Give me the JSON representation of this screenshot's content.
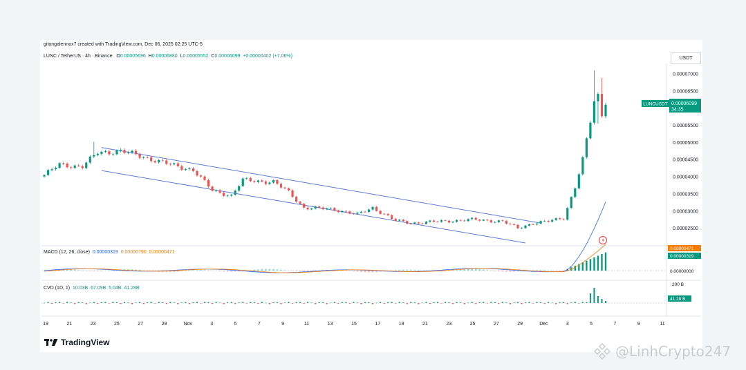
{
  "header": {
    "credit": "gitongalennox7 created with TradingView.com, Dec 06, 2025 02:25 UTC-5"
  },
  "legend": {
    "symbol": "LUNC / TetherUS · 4h · Binance",
    "open_label": "O",
    "open": "0.00005696",
    "high_label": "H",
    "high": "0.00006880",
    "low_label": "L",
    "low": "0.00005552",
    "close_label": "C",
    "close": "0.00006099",
    "change": "+0.00000402 (+7.06%)"
  },
  "macd_legend": {
    "label": "MACD (12, 26, close)",
    "v1": "0.00000319",
    "v2": "0.00000790",
    "v3": "0.00000471"
  },
  "cvd_legend": {
    "label": "CVD (1D, 1)",
    "v1": "10.03B",
    "v2": "67.09B",
    "v3": "5.04B",
    "v4": "41.28B"
  },
  "currency_box": "USDT",
  "price_tag": {
    "symbol": "LUNCUSDT",
    "price": "0.00006099",
    "timer": "34:35"
  },
  "macd_tags": {
    "a": "0.00000471",
    "b": "0.00000319",
    "zero": "0.00000000"
  },
  "cvd_tags": {
    "top": "200 B",
    "value": "41.28 B"
  },
  "brand": "TradingView",
  "watermark": "@LinhCrypto247",
  "colors": {
    "up": "#089981",
    "down": "#ef5350",
    "channel": "#5b7bd8",
    "macd": "#2962ff",
    "signal": "#f57c00"
  },
  "chart_data": {
    "type": "candlestick",
    "symbol": "LUNC / TetherUS",
    "interval": "4h",
    "exchange": "Binance",
    "y_ticks": [
      "0.00007000",
      "0.00006500",
      "0.00006000",
      "0.00005500",
      "0.00005000",
      "0.00004500",
      "0.00004000",
      "0.00003500",
      "0.00003000",
      "0.00002500"
    ],
    "ylim": [
      2.07e-05,
      7.3e-05
    ],
    "x_ticks": [
      "19",
      "21",
      "23",
      "25",
      "27",
      "29",
      "Nov",
      "3",
      "5",
      "7",
      "9",
      "11",
      "13",
      "15",
      "17",
      "19",
      "21",
      "23",
      "25",
      "27",
      "29",
      "Dec",
      "3",
      "5",
      "7",
      "9",
      "11"
    ],
    "last_close": 6.099e-05,
    "swings": [
      [
        0,
        4.05e-05
      ],
      [
        4,
        4.35e-05
      ],
      [
        10,
        4.3e-05
      ],
      [
        14,
        4.7e-05
      ],
      [
        20,
        4.75e-05
      ],
      [
        27,
        4.55e-05
      ],
      [
        33,
        4.35e-05
      ],
      [
        39,
        4.2e-05
      ],
      [
        44,
        3.6e-05
      ],
      [
        49,
        3.45e-05
      ],
      [
        52,
        3.9e-05
      ],
      [
        60,
        3.85e-05
      ],
      [
        64,
        3.55e-05
      ],
      [
        68,
        3.1e-05
      ],
      [
        76,
        3.05e-05
      ],
      [
        82,
        2.9e-05
      ],
      [
        86,
        3.1e-05
      ],
      [
        92,
        2.72e-05
      ],
      [
        96,
        2.65e-05
      ],
      [
        104,
        2.7e-05
      ],
      [
        112,
        2.75e-05
      ],
      [
        120,
        2.7e-05
      ],
      [
        124,
        2.5e-05
      ],
      [
        128,
        2.65e-05
      ],
      [
        132,
        2.7e-05
      ],
      [
        136,
        2.8e-05
      ],
      [
        139,
        3.7e-05
      ],
      [
        141,
        4.5e-05
      ],
      [
        143,
        5.6e-05
      ],
      [
        144,
        6.2e-05
      ],
      [
        145,
        6.35e-05
      ],
      [
        146,
        5.8e-05
      ],
      [
        147,
        6.1e-05
      ]
    ],
    "channel": {
      "upper": [
        [
          15,
          4.85e-05
        ],
        [
          130,
          2.65e-05
        ]
      ],
      "lower": [
        [
          15,
          4.18e-05
        ],
        [
          126,
          2.07e-05
        ]
      ]
    },
    "macd": {
      "name": "MACD (12, 26, close)",
      "macd": 3.19e-06,
      "signal": 7.9e-06,
      "histogram": 4.71e-06
    },
    "cvd": {
      "name": "CVD (1D, 1)",
      "values": [
        "10.03B",
        "67.09B",
        "5.04B",
        "41.28B"
      ]
    }
  }
}
